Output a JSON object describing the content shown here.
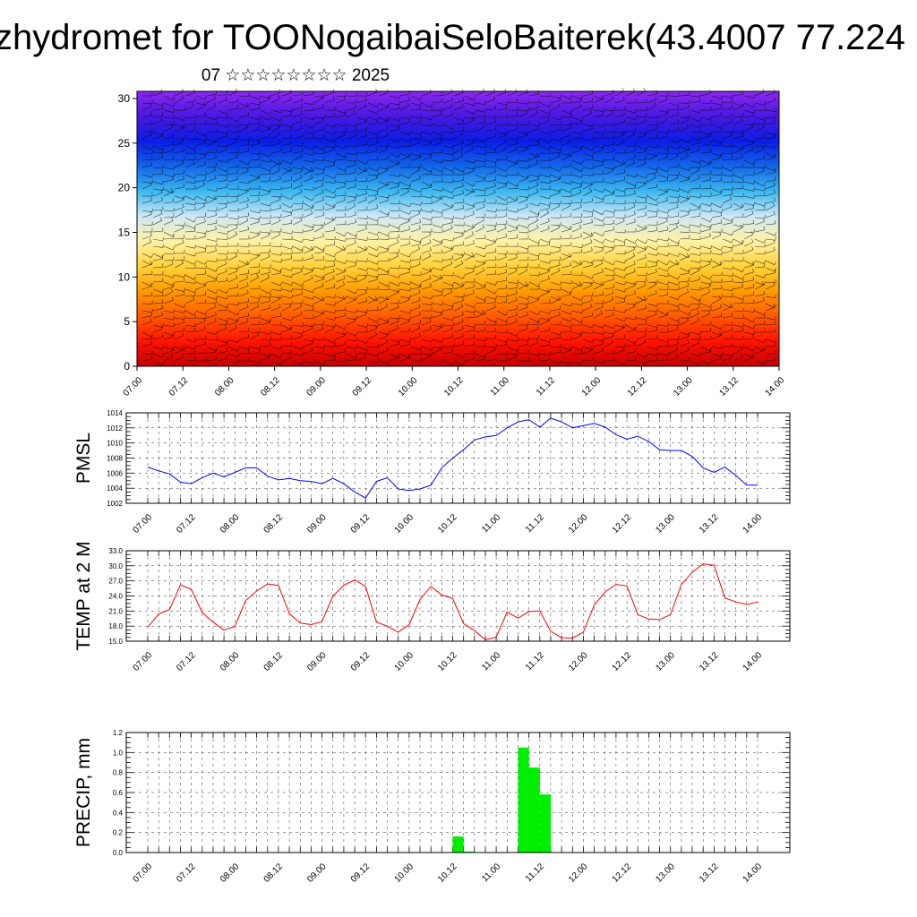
{
  "title": "zhydromet for TOONogaibaiSeloBaiterek(43.4007 77.224",
  "subtitle": "07 ☆☆☆☆☆☆☆☆ 2025",
  "x_tick_labels": [
    "07.00",
    "07.12",
    "08.00",
    "08.12",
    "09.00",
    "09.12",
    "10.00",
    "10.12",
    "11.00",
    "11.12",
    "12.00",
    "12.12",
    "13.00",
    "13.12",
    "14.00"
  ],
  "chart_data": [
    {
      "type": "heatmap",
      "title": "",
      "xlabel": "",
      "ylabel": "",
      "x_ticks": [
        "07.00",
        "07.12",
        "08.00",
        "08.12",
        "09.00",
        "09.12",
        "10.00",
        "10.12",
        "11.00",
        "11.12",
        "12.00",
        "12.12",
        "13.00",
        "13.12",
        "14.00"
      ],
      "y_ticks": [
        0,
        5,
        10,
        15,
        20,
        25,
        30
      ],
      "ylim": [
        0,
        30.8
      ],
      "levels": [
        0,
        5,
        10,
        15,
        20,
        25,
        30
      ],
      "colors_low_to_high": [
        "#c40000",
        "#ff1400",
        "#ff5a00",
        "#ff9a00",
        "#ffd23c",
        "#fff2a6",
        "#cfe8f5",
        "#3cb8f0",
        "#1466e8",
        "#0a1ee6",
        "#4a18e0",
        "#8a28f0"
      ],
      "overlay": "wind barbs",
      "grid": false
    },
    {
      "type": "line",
      "ylabel": "PMSL",
      "xlabel": "",
      "series_color": "#0000ff",
      "y_ticks": [
        1002,
        1004,
        1006,
        1008,
        1010,
        1012,
        1014
      ],
      "ylim": [
        1002,
        1014
      ],
      "grid": true,
      "values": [
        1006.8,
        1006.3,
        1005.9,
        1004.8,
        1004.6,
        1005.4,
        1006.0,
        1005.5,
        1006.1,
        1006.7,
        1006.7,
        1005.6,
        1005.1,
        1005.3,
        1005.0,
        1004.9,
        1004.6,
        1005.3,
        1004.6,
        1003.5,
        1002.7,
        1004.9,
        1005.4,
        1003.9,
        1003.7,
        1003.9,
        1004.4,
        1006.7,
        1008.0,
        1009.1,
        1010.4,
        1010.8,
        1011.0,
        1012.0,
        1012.8,
        1013.1,
        1012.1,
        1013.3,
        1012.8,
        1012.0,
        1012.3,
        1012.6,
        1012.1,
        1011.1,
        1010.5,
        1010.9,
        1010.2,
        1009.1,
        1009.0,
        1009.0,
        1008.2,
        1006.7,
        1006.1,
        1006.8,
        1005.7,
        1004.4,
        1004.4
      ]
    },
    {
      "type": "line",
      "ylabel": "TEMP at 2 M",
      "xlabel": "",
      "series_color": "#ff0000",
      "y_ticks": [
        "15.0",
        "18.0",
        "21.0",
        "24.0",
        "27.0",
        "30.0",
        "33.0"
      ],
      "ylim": [
        15,
        33
      ],
      "grid": true,
      "values": [
        17.8,
        20.4,
        21.3,
        26.2,
        25.3,
        20.7,
        18.8,
        17.2,
        18.0,
        23.1,
        25.0,
        26.4,
        26.1,
        20.5,
        18.6,
        18.3,
        18.9,
        24.0,
        26.1,
        27.2,
        25.9,
        18.8,
        18.0,
        16.8,
        18.3,
        23.3,
        25.9,
        24.2,
        23.5,
        18.5,
        17.1,
        15.3,
        15.8,
        20.8,
        19.6,
        20.9,
        21.0,
        17.0,
        15.7,
        15.6,
        16.8,
        22.2,
        24.8,
        26.3,
        26.0,
        20.3,
        19.4,
        19.3,
        20.3,
        26.3,
        28.7,
        30.4,
        30.1,
        23.6,
        22.8,
        22.3,
        22.8
      ]
    },
    {
      "type": "bar",
      "ylabel": "PRECIP, mm",
      "xlabel": "",
      "series_color": "#00ee00",
      "y_ticks": [
        "0.0",
        "0.2",
        "0.4",
        "0.6",
        "0.8",
        "1.0",
        "1.2"
      ],
      "ylim": [
        0,
        1.2
      ],
      "grid": true,
      "bars": [
        {
          "start_step": 28,
          "value": 0.16
        },
        {
          "start_step": 29,
          "value": 0.01
        },
        {
          "start_step": 34,
          "value": 1.05
        },
        {
          "start_step": 35,
          "value": 0.85
        },
        {
          "start_step": 36,
          "value": 0.58
        }
      ]
    }
  ]
}
